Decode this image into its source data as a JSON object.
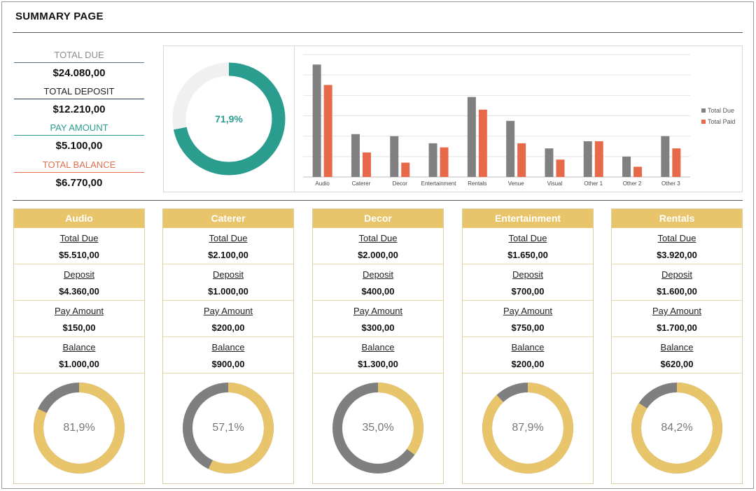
{
  "title": "SUMMARY PAGE",
  "summary": [
    {
      "label": "TOTAL DUE",
      "value": "$24.080,00",
      "label_color": "#8c8c8c",
      "line_color": "#5a6e8a"
    },
    {
      "label": "TOTAL DEPOSIT",
      "value": "$12.210,00",
      "label_color": "#222222",
      "line_color": "#1f3550"
    },
    {
      "label": "PAY AMOUNT",
      "value": "$5.100,00",
      "label_color": "#2a9d8f",
      "line_color": "#2a9d8f"
    },
    {
      "label": "TOTAL BALANCE",
      "value": "$6.770,00",
      "label_color": "#e07050",
      "line_color": "#e07050"
    }
  ],
  "main_donut": {
    "percent_text": "71,9%",
    "fraction": 0.719,
    "color": "#2a9d8f",
    "track": "#f0f0f0"
  },
  "chart_data": {
    "type": "bar",
    "categories": [
      "Audio",
      "Caterer",
      "Decor",
      "Entertainment",
      "Rentals",
      "Venue",
      "Visual",
      "Other 1",
      "Other 2",
      "Other 3"
    ],
    "series": [
      {
        "name": "Total Due",
        "color": "#808080",
        "values": [
          5510,
          2100,
          2000,
          1650,
          3920,
          2750,
          1400,
          1750,
          1000,
          2000
        ]
      },
      {
        "name": "Total Paid",
        "color": "#e8694a",
        "values": [
          4510,
          1200,
          700,
          1450,
          3300,
          1650,
          850,
          1750,
          500,
          1400
        ]
      }
    ],
    "ylim": [
      0,
      6000
    ],
    "grid": true,
    "legend": "right"
  },
  "cards": [
    {
      "name": "Audio",
      "total_due_label": "Total Due",
      "total_due": "$5.510,00",
      "deposit_label": "Deposit",
      "deposit": "$4.360,00",
      "pay_label": "Pay Amount",
      "pay": "$150,00",
      "balance_label": "Balance",
      "balance": "$1.000,00",
      "percent_text": "81,9%",
      "fraction": 0.819
    },
    {
      "name": "Caterer",
      "total_due_label": "Total Due",
      "total_due": "$2.100,00",
      "deposit_label": "Deposit",
      "deposit": "$1.000,00",
      "pay_label": "Pay Amount",
      "pay": "$200,00",
      "balance_label": "Balance",
      "balance": "$900,00",
      "percent_text": "57,1%",
      "fraction": 0.571
    },
    {
      "name": "Decor",
      "total_due_label": "Total Due",
      "total_due": "$2.000,00",
      "deposit_label": "Deposit",
      "deposit": "$400,00",
      "pay_label": "Pay Amount",
      "pay": "$300,00",
      "balance_label": "Balance",
      "balance": "$1.300,00",
      "percent_text": "35,0%",
      "fraction": 0.35
    },
    {
      "name": "Entertainment",
      "total_due_label": "Total Due",
      "total_due": "$1.650,00",
      "deposit_label": "Deposit",
      "deposit": "$700,00",
      "pay_label": "Pay Amount",
      "pay": "$750,00",
      "balance_label": "Balance",
      "balance": "$200,00",
      "percent_text": "87,9%",
      "fraction": 0.879
    },
    {
      "name": "Rentals",
      "total_due_label": "Total Due",
      "total_due": "$3.920,00",
      "deposit_label": "Deposit",
      "deposit": "$1.600,00",
      "pay_label": "Pay Amount",
      "pay": "$1.700,00",
      "balance_label": "Balance",
      "balance": "$620,00",
      "percent_text": "84,2%",
      "fraction": 0.842
    }
  ],
  "donut_colors": {
    "filled": "#e8c46a",
    "remaining": "#7f7f7f"
  }
}
